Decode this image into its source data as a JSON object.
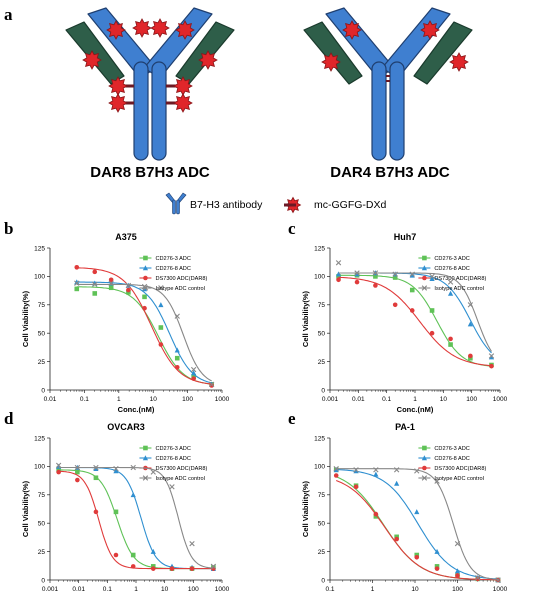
{
  "panel_a": {
    "letter": "a",
    "left_title": "DAR8 B7H3 ADC",
    "right_title": "DAR4 B7H3 ADC",
    "legend": {
      "antibody_label": "B7-H3 antibody",
      "payload_label": "mc-GGFG-DXd"
    },
    "colors": {
      "heavy_chain": "#3f7fd0",
      "light_chain": "#2e5e49",
      "payload": "#e0262a",
      "linker": "#6b1a25"
    }
  },
  "chart_data": [
    {
      "letter": "b",
      "title": "A375",
      "type": "line",
      "xscale": "log",
      "xlim": [
        0.01,
        1000
      ],
      "ylim": [
        0,
        125
      ],
      "xticks": [
        "0.01",
        "0.1",
        "1",
        "10",
        "100",
        "1000"
      ],
      "yticks": [
        "0",
        "25",
        "50",
        "75",
        "100",
        "125"
      ],
      "xlabel": "Conc.(nM)",
      "ylabel": "Cell Viability(%)",
      "series": [
        {
          "name": "CD276-3 ADC",
          "color": "#5fc257",
          "marker": "square",
          "x": [
            0.06,
            0.2,
            0.6,
            1.9,
            5.6,
            16.7,
            50,
            150,
            500
          ],
          "y": [
            89,
            85,
            90,
            86,
            82,
            55,
            28,
            12,
            5
          ],
          "top": 91,
          "bottom": 4,
          "ec50": 14,
          "hill": 1.2
        },
        {
          "name": "CD276-8 ADC",
          "color": "#2f8fd0",
          "marker": "triangle",
          "x": [
            0.06,
            0.2,
            0.6,
            1.9,
            5.6,
            16.7,
            50,
            150,
            500
          ],
          "y": [
            95,
            94,
            94,
            92,
            89,
            75,
            35,
            15,
            5
          ],
          "top": 95,
          "bottom": 4,
          "ec50": 30,
          "hill": 1.3
        },
        {
          "name": "DS7300 ADC(DAR8)",
          "color": "#e03b3b",
          "marker": "circle",
          "x": [
            0.06,
            0.2,
            0.6,
            1.9,
            5.6,
            16.7,
            50,
            150,
            500
          ],
          "y": [
            108,
            104,
            97,
            88,
            72,
            40,
            20,
            10,
            4
          ],
          "top": 108,
          "bottom": 4,
          "ec50": 9,
          "hill": 1.1
        },
        {
          "name": "Isotype ADC control",
          "color": "#888888",
          "marker": "x",
          "x": [
            0.06,
            0.2,
            0.6,
            1.9,
            5.6,
            16.7,
            50,
            150,
            500
          ],
          "y": [
            94,
            93,
            94,
            92,
            91,
            90,
            65,
            18,
            5
          ],
          "top": 93,
          "bottom": 4,
          "ec50": 75,
          "hill": 1.6
        }
      ]
    },
    {
      "letter": "c",
      "title": "Huh7",
      "type": "line",
      "xscale": "log",
      "xlim": [
        0.001,
        1000
      ],
      "ylim": [
        0,
        125
      ],
      "xticks": [
        "0.001",
        "0.01",
        "0.1",
        "1",
        "10",
        "100",
        "1000"
      ],
      "yticks": [
        "0",
        "25",
        "50",
        "75",
        "100",
        "125"
      ],
      "xlabel": "Conc.(nM)",
      "ylabel": "Cell Viability(%)",
      "series": [
        {
          "name": "CD276-3 ADC",
          "color": "#5fc257",
          "marker": "square",
          "x": [
            0.002,
            0.009,
            0.04,
            0.2,
            0.8,
            4,
            18,
            90,
            500
          ],
          "y": [
            100,
            101,
            100,
            99,
            88,
            70,
            40,
            28,
            22
          ],
          "top": 101,
          "bottom": 20,
          "ec50": 6,
          "hill": 1.0
        },
        {
          "name": "CD276-8 ADC",
          "color": "#2f8fd0",
          "marker": "triangle",
          "x": [
            0.002,
            0.009,
            0.04,
            0.2,
            0.8,
            4,
            18,
            90,
            500
          ],
          "y": [
            102,
            102,
            103,
            102,
            101,
            98,
            85,
            58,
            29
          ],
          "top": 103,
          "bottom": 20,
          "ec50": 90,
          "hill": 1.0
        },
        {
          "name": "DS7300 ADC(DAR8)",
          "color": "#e03b3b",
          "marker": "circle",
          "x": [
            0.002,
            0.009,
            0.04,
            0.2,
            0.8,
            4,
            18,
            90,
            500
          ],
          "y": [
            97,
            95,
            92,
            75,
            70,
            50,
            45,
            30,
            21
          ],
          "top": 100,
          "bottom": 20,
          "ec50": 1.5,
          "hill": 0.7
        },
        {
          "name": "Isotype ADC control",
          "color": "#888888",
          "marker": "x",
          "x": [
            0.002,
            0.009,
            0.04,
            0.2,
            0.8,
            4,
            18,
            90,
            500
          ],
          "y": [
            112,
            103,
            103,
            102,
            102,
            100,
            95,
            75,
            30
          ],
          "top": 103,
          "bottom": 20,
          "ec50": 160,
          "hill": 1.4
        }
      ]
    },
    {
      "letter": "d",
      "title": "OVCAR3",
      "type": "line",
      "xscale": "log",
      "xlim": [
        0.001,
        1000
      ],
      "ylim": [
        0,
        125
      ],
      "xticks": [
        "0.001",
        "0.01",
        "0.1",
        "1",
        "10",
        "100",
        "1000"
      ],
      "yticks": [
        "0",
        "25",
        "50",
        "75",
        "100",
        "125"
      ],
      "xlabel": "Conc.(nM)",
      "ylabel": "Cell Viability(%)",
      "series": [
        {
          "name": "CD276-3 ADC",
          "color": "#5fc257",
          "marker": "square",
          "x": [
            0.002,
            0.009,
            0.04,
            0.2,
            0.8,
            4,
            18,
            90,
            500
          ],
          "y": [
            97,
            95,
            90,
            60,
            22,
            12,
            10,
            10,
            11
          ],
          "top": 97,
          "bottom": 10,
          "ec50": 0.22,
          "hill": 1.5
        },
        {
          "name": "CD276-8 ADC",
          "color": "#2f8fd0",
          "marker": "triangle",
          "x": [
            0.002,
            0.009,
            0.04,
            0.2,
            0.8,
            4,
            18,
            90,
            500
          ],
          "y": [
            100,
            99,
            98,
            96,
            75,
            25,
            12,
            11,
            10
          ],
          "top": 99,
          "bottom": 10,
          "ec50": 1.5,
          "hill": 1.7
        },
        {
          "name": "DS7300 ADC(DAR8)",
          "color": "#e03b3b",
          "marker": "circle",
          "x": [
            0.002,
            0.009,
            0.04,
            0.2,
            0.8,
            4,
            18,
            90,
            500
          ],
          "y": [
            95,
            88,
            60,
            22,
            12,
            10,
            10,
            10,
            10
          ],
          "top": 96,
          "bottom": 10,
          "ec50": 0.05,
          "hill": 1.8
        },
        {
          "name": "Isotype ADC control",
          "color": "#888888",
          "marker": "x",
          "x": [
            0.002,
            0.009,
            0.04,
            0.2,
            0.8,
            4,
            18,
            90,
            500
          ],
          "y": [
            101,
            99,
            99,
            98,
            99,
            95,
            82,
            32,
            12
          ],
          "top": 99,
          "bottom": 10,
          "ec50": 30,
          "hill": 1.9
        }
      ]
    },
    {
      "letter": "e",
      "title": "PA-1",
      "type": "line",
      "xscale": "log",
      "xlim": [
        0.1,
        1000
      ],
      "ylim": [
        0,
        125
      ],
      "xticks": [
        "0.1",
        "1",
        "10",
        "100",
        "1000"
      ],
      "yticks": [
        "0",
        "25",
        "50",
        "75",
        "100",
        "125"
      ],
      "xlabel": "Conc.(nM)",
      "ylabel": "Cell Viability(%)",
      "series": [
        {
          "name": "CD276-3 ADC",
          "color": "#5fc257",
          "marker": "square",
          "x": [
            0.14,
            0.41,
            1.2,
            3.7,
            11,
            33,
            100,
            300,
            900
          ],
          "y": [
            97,
            83,
            56,
            38,
            22,
            12,
            4,
            1,
            0
          ],
          "top": 98,
          "bottom": 0,
          "ec50": 1.8,
          "hill": 1.0
        },
        {
          "name": "CD276-8 ADC",
          "color": "#2f8fd0",
          "marker": "triangle",
          "x": [
            0.14,
            0.41,
            1.2,
            3.7,
            11,
            33,
            100,
            300,
            900
          ],
          "y": [
            97,
            96,
            93,
            85,
            60,
            25,
            8,
            2,
            0
          ],
          "top": 98,
          "bottom": 0,
          "ec50": 12,
          "hill": 1.1
        },
        {
          "name": "DS7300 ADC(DAR8)",
          "color": "#e03b3b",
          "marker": "circle",
          "x": [
            0.14,
            0.41,
            1.2,
            3.7,
            11,
            33,
            100,
            300,
            900
          ],
          "y": [
            92,
            82,
            58,
            36,
            20,
            10,
            4,
            1,
            0
          ],
          "top": 94,
          "bottom": 0,
          "ec50": 1.9,
          "hill": 1.0
        },
        {
          "name": "Isotype ADC control",
          "color": "#888888",
          "marker": "x",
          "x": [
            0.14,
            0.41,
            1.2,
            3.7,
            11,
            33,
            100,
            300,
            900
          ],
          "y": [
            98,
            97,
            97,
            97,
            96,
            87,
            32,
            2,
            0
          ],
          "top": 98,
          "bottom": 0,
          "ec50": 80,
          "hill": 2.2
        }
      ]
    }
  ]
}
